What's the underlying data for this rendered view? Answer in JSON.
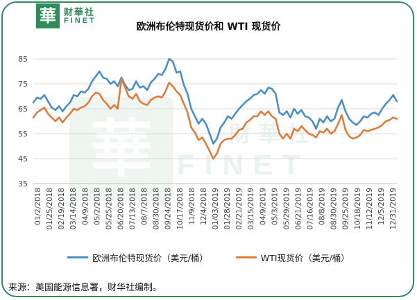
{
  "header": {
    "logo_char": "華",
    "logo_cn": "财華社",
    "logo_en": "FINET"
  },
  "watermark": {
    "seal_char": "華",
    "text_cn": "財華社",
    "text_en": "FINET"
  },
  "footer": {
    "source": "来源：美国能源信息署，财华社编制。"
  },
  "colors": {
    "brent": "#4a8ec6",
    "wti": "#e07b39",
    "frame": "#2f8b5a",
    "grid": "#d9d9d9"
  },
  "chart_data": {
    "type": "line",
    "title": "欧洲布伦特现货价和 WTI 现货价",
    "xlabel": "",
    "ylabel": "",
    "ylim": [
      35,
      85
    ],
    "yticks": [
      35,
      45,
      55,
      65,
      75,
      85
    ],
    "grid": true,
    "legend_position": "bottom",
    "x_tick_labels": [
      "01/2/2018",
      "01/25/2018",
      "02/19/2018",
      "03/14/2018",
      "04/9/2018",
      "05/2/2018",
      "05/25/2018",
      "06/20/2018",
      "07/13/2018",
      "08/7/2018",
      "08/30/2018",
      "09/24/2018",
      "10/17/2018",
      "11/9/2018",
      "12/4/2018",
      "01/03/2019",
      "01/28/2019",
      "02/21/2019",
      "03/15/2019",
      "04/9/2019",
      "05/3/2019",
      "05/29/2019",
      "06/21/2019",
      "07/16/2019",
      "08/8/2019",
      "08/30/2019",
      "09/25/2019",
      "10/18/2019",
      "11/12/2019",
      "12/5/2019",
      "12/31/2019"
    ],
    "series": [
      {
        "name": "欧洲布伦特现货价（美元/桶）",
        "color": "#4a8ec6",
        "values": [
          67.5,
          69.5,
          69.0,
          70.5,
          68.0,
          65.5,
          64.5,
          66.0,
          64.0,
          66.0,
          67.5,
          70.5,
          70.0,
          72.0,
          71.5,
          73.0,
          76.0,
          78.0,
          80.0,
          77.5,
          77.0,
          75.0,
          76.0,
          74.0,
          77.5,
          74.5,
          72.5,
          73.0,
          76.0,
          73.5,
          74.0,
          72.5,
          75.5,
          77.0,
          79.0,
          78.5,
          81.0,
          85.0,
          84.0,
          79.5,
          80.0,
          74.5,
          71.0,
          65.0,
          62.0,
          59.0,
          61.0,
          59.0,
          55.0,
          51.0,
          53.0,
          57.5,
          59.5,
          62.0,
          61.0,
          63.0,
          65.0,
          66.5,
          68.0,
          69.0,
          70.5,
          71.0,
          72.5,
          71.0,
          73.5,
          73.0,
          71.0,
          63.5,
          62.5,
          64.0,
          61.5,
          65.0,
          63.0,
          64.5,
          62.0,
          61.5,
          60.0,
          57.0,
          61.0,
          59.5,
          62.0,
          60.0,
          61.0,
          65.5,
          68.5,
          64.0,
          61.0,
          59.5,
          58.5,
          60.0,
          62.0,
          61.5,
          63.0,
          63.5,
          62.5,
          65.0,
          67.0,
          68.5,
          70.5,
          68.0
        ]
      },
      {
        "name": "WTI现货价（美元/桶）",
        "color": "#e07b39",
        "values": [
          61.5,
          63.5,
          64.5,
          65.5,
          63.0,
          61.5,
          60.0,
          61.5,
          59.5,
          61.5,
          63.0,
          65.0,
          64.5,
          65.5,
          66.0,
          67.5,
          70.0,
          71.5,
          71.0,
          68.5,
          67.0,
          65.0,
          66.5,
          65.0,
          77.0,
          73.5,
          70.0,
          69.0,
          71.0,
          68.0,
          67.0,
          66.5,
          68.5,
          69.5,
          70.0,
          69.5,
          72.0,
          75.5,
          74.0,
          72.0,
          70.5,
          67.0,
          63.5,
          57.5,
          55.5,
          52.5,
          53.5,
          51.0,
          48.0,
          45.0,
          47.0,
          51.0,
          52.5,
          53.0,
          53.0,
          54.5,
          56.5,
          57.0,
          59.5,
          60.5,
          62.0,
          62.0,
          64.0,
          62.5,
          64.0,
          62.0,
          61.0,
          55.0,
          53.0,
          55.0,
          53.0,
          57.0,
          56.0,
          58.0,
          56.5,
          55.0,
          54.5,
          53.5,
          56.0,
          55.5,
          57.0,
          55.0,
          56.0,
          59.0,
          62.5,
          56.5,
          54.0,
          53.0,
          53.5,
          54.5,
          56.5,
          56.0,
          56.5,
          57.0,
          57.5,
          58.5,
          60.0,
          60.5,
          61.5,
          61.0
        ]
      }
    ]
  }
}
